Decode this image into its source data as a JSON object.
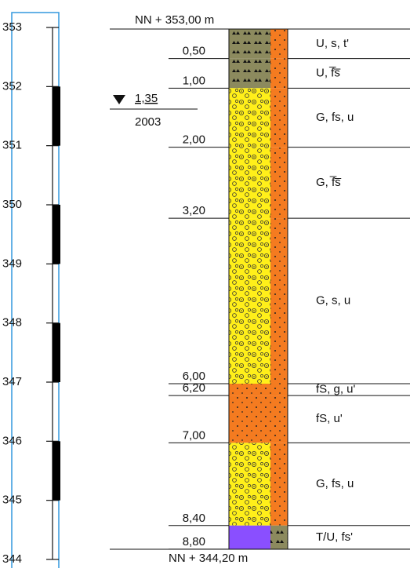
{
  "elevation_scale": {
    "labels": [
      353,
      352,
      351,
      350,
      349,
      348,
      347,
      346,
      345,
      344
    ]
  },
  "top_label": "NN + 353,00 m",
  "bottom_label": "NN + 344,20 m",
  "water_level": {
    "depth": "1,35",
    "year": "2003"
  },
  "layers": [
    {
      "bottom": "0,50",
      "description": "U, s, t'",
      "colors": [
        "#8c8a5e",
        "#f47b20"
      ]
    },
    {
      "bottom": "1,00",
      "description": "U, f̅s̅",
      "colors": [
        "#8c8a5e",
        "#f47b20"
      ]
    },
    {
      "bottom": "2,00",
      "description": "G, fs, u",
      "colors": [
        "#ffef1a",
        "#f47b20"
      ]
    },
    {
      "bottom": "3,20",
      "description": "G, f̅s̅",
      "colors": [
        "#ffef1a",
        "#f47b20"
      ]
    },
    {
      "bottom": "6,00",
      "description": "G, s, u",
      "colors": [
        "#ffef1a",
        "#f47b20"
      ]
    },
    {
      "bottom": "6,20",
      "description": "fS, g, u'",
      "colors": [
        "#f47b20",
        "#f47b20"
      ]
    },
    {
      "bottom": "7,00",
      "description": "fS, u'",
      "colors": [
        "#f47b20",
        "#f47b20"
      ]
    },
    {
      "bottom": "8,40",
      "description": "G, fs, u",
      "colors": [
        "#ffef1a",
        "#f47b20"
      ]
    },
    {
      "bottom": "8,80",
      "description": "T/U, fs'",
      "colors": [
        "#8a4fff",
        "#8c8a5e"
      ]
    }
  ]
}
